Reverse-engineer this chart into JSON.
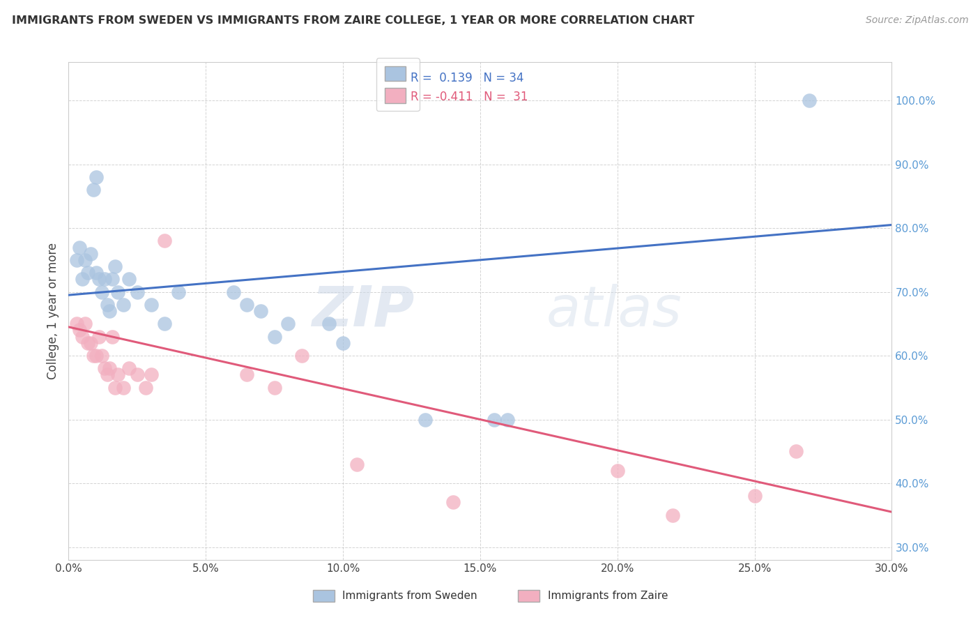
{
  "title": "IMMIGRANTS FROM SWEDEN VS IMMIGRANTS FROM ZAIRE COLLEGE, 1 YEAR OR MORE CORRELATION CHART",
  "source": "Source: ZipAtlas.com",
  "ylabel": "College, 1 year or more",
  "legend_label1": "Immigrants from Sweden",
  "legend_label2": "Immigrants from Zaire",
  "r1": 0.139,
  "n1": 34,
  "r2": -0.411,
  "n2": 31,
  "xlim": [
    0.0,
    0.3
  ],
  "ylim": [
    0.28,
    1.06
  ],
  "xticks": [
    0.0,
    0.05,
    0.1,
    0.15,
    0.2,
    0.25,
    0.3
  ],
  "yticks": [
    0.3,
    0.4,
    0.5,
    0.6,
    0.7,
    0.8,
    0.9,
    1.0
  ],
  "xtick_labels": [
    "0.0%",
    "5.0%",
    "10.0%",
    "15.0%",
    "20.0%",
    "25.0%",
    "30.0%"
  ],
  "ytick_labels": [
    "30.0%",
    "40.0%",
    "50.0%",
    "60.0%",
    "70.0%",
    "80.0%",
    "90.0%",
    "100.0%"
  ],
  "color_blue": "#aac4e0",
  "color_pink": "#f2afc0",
  "line_color_blue": "#4472c4",
  "line_color_pink": "#e05a7a",
  "blue_trend_x0": 0.0,
  "blue_trend_y0": 0.695,
  "blue_trend_x1": 0.3,
  "blue_trend_y1": 0.805,
  "pink_trend_x0": 0.0,
  "pink_trend_y0": 0.645,
  "pink_trend_x1": 0.3,
  "pink_trend_y1": 0.355,
  "blue_x": [
    0.003,
    0.004,
    0.005,
    0.006,
    0.007,
    0.008,
    0.009,
    0.01,
    0.01,
    0.011,
    0.012,
    0.013,
    0.014,
    0.015,
    0.016,
    0.017,
    0.018,
    0.02,
    0.022,
    0.025,
    0.03,
    0.035,
    0.04,
    0.06,
    0.065,
    0.07,
    0.075,
    0.08,
    0.095,
    0.1,
    0.13,
    0.155,
    0.16,
    0.27
  ],
  "blue_y": [
    0.75,
    0.77,
    0.72,
    0.75,
    0.73,
    0.76,
    0.86,
    0.88,
    0.73,
    0.72,
    0.7,
    0.72,
    0.68,
    0.67,
    0.72,
    0.74,
    0.7,
    0.68,
    0.72,
    0.7,
    0.68,
    0.65,
    0.7,
    0.7,
    0.68,
    0.67,
    0.63,
    0.65,
    0.65,
    0.62,
    0.5,
    0.5,
    0.5,
    1.0
  ],
  "pink_x": [
    0.003,
    0.004,
    0.005,
    0.006,
    0.007,
    0.008,
    0.009,
    0.01,
    0.011,
    0.012,
    0.013,
    0.014,
    0.015,
    0.016,
    0.017,
    0.018,
    0.02,
    0.022,
    0.025,
    0.028,
    0.03,
    0.035,
    0.065,
    0.075,
    0.085,
    0.105,
    0.14,
    0.2,
    0.22,
    0.25,
    0.265
  ],
  "pink_y": [
    0.65,
    0.64,
    0.63,
    0.65,
    0.62,
    0.62,
    0.6,
    0.6,
    0.63,
    0.6,
    0.58,
    0.57,
    0.58,
    0.63,
    0.55,
    0.57,
    0.55,
    0.58,
    0.57,
    0.55,
    0.57,
    0.78,
    0.57,
    0.55,
    0.6,
    0.43,
    0.37,
    0.42,
    0.35,
    0.38,
    0.45
  ],
  "watermark_zip": "ZIP",
  "watermark_atlas": "atlas",
  "background_color": "#ffffff",
  "grid_color": "#c8c8c8"
}
